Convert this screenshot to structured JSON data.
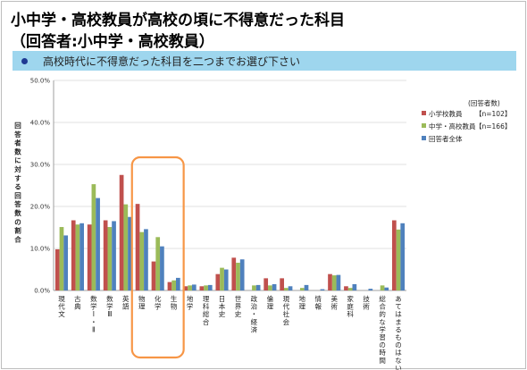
{
  "title_line1": "小中学・高校教員が高校の頃に不得意だった科目",
  "title_line2": "（回答者:小中学・高校教員）",
  "question": "高校時代に不得意だった科目を二つまでお選び下さい",
  "colors": {
    "s1": "#c0504d",
    "s2": "#9bbb59",
    "s3": "#4f81bd",
    "highlight": "#f79646",
    "question_bg": "#9ed6ee"
  },
  "chart_data": {
    "type": "bar",
    "ylabel": "回答者数に対する回答数の割合",
    "ylim": [
      0,
      50
    ],
    "yticks": [
      "0.0%",
      "10.0%",
      "20.0%",
      "30.0%",
      "40.0%",
      "50.0%"
    ],
    "grid": true,
    "legend_position": "right",
    "legend_title": "(回答者数)",
    "categories": [
      "現代文",
      "古典",
      "数学Ⅰ・Ⅱ",
      "数学Ⅲ",
      "英語",
      "物理",
      "化学",
      "生物",
      "地学",
      "理科総合",
      "日本史",
      "世界史",
      "政治・経済",
      "倫理",
      "現代社会",
      "地理",
      "情報",
      "美術",
      "家庭科",
      "技術",
      "総合的な学習の時間",
      "あてはまるものはない"
    ],
    "series": [
      {
        "name": "小学校教員",
        "n_label": "【n=102】",
        "values": [
          9.8,
          16.7,
          15.7,
          16.7,
          27.5,
          20.6,
          6.9,
          2.0,
          1.0,
          1.0,
          3.9,
          7.8,
          0,
          2.9,
          2.9,
          0,
          0,
          3.9,
          1.0,
          0,
          0,
          16.7
        ]
      },
      {
        "name": "中学・高校教員",
        "n_label": "【n=166】",
        "values": [
          15.1,
          15.7,
          25.3,
          15.1,
          20.5,
          13.9,
          12.7,
          2.4,
          1.2,
          1.2,
          5.4,
          6.6,
          1.2,
          1.2,
          0.6,
          0.6,
          0,
          3.6,
          0.6,
          0,
          1.2,
          14.5
        ]
      },
      {
        "name": "回答者全体",
        "n_label": "",
        "values": [
          13.1,
          16.0,
          22.0,
          16.5,
          17.5,
          14.6,
          10.5,
          3.0,
          1.4,
          1.3,
          5.0,
          7.4,
          1.3,
          1.5,
          1.0,
          1.3,
          0.3,
          3.7,
          1.5,
          0.4,
          0.7,
          16.0
        ]
      }
    ]
  }
}
